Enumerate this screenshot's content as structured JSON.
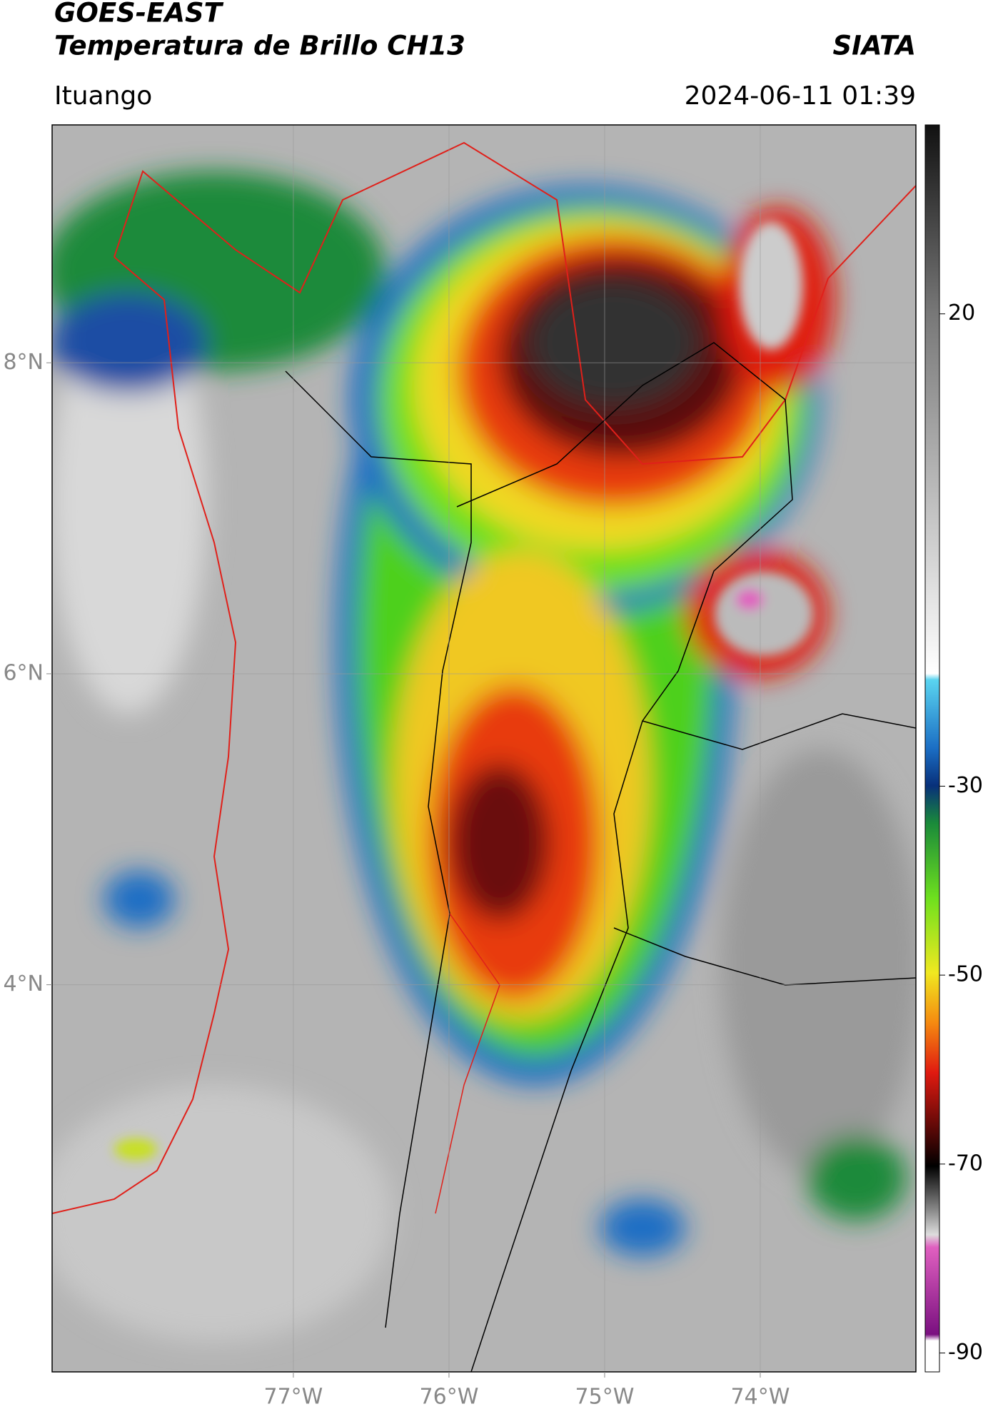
{
  "chart_data": {
    "type": "satellite-map",
    "title": "GOES-EAST",
    "subtitle": "Temperatura de Brillo CH13",
    "source": "SIATA",
    "region": "Ituango",
    "timestamp": "2024-06-11 01:39",
    "xlim": [
      -78.55,
      -73.0
    ],
    "ylim": [
      1.51,
      9.53
    ],
    "xticks": [
      {
        "value": -77,
        "label": "77°W"
      },
      {
        "value": -76,
        "label": "76°W"
      },
      {
        "value": -75,
        "label": "75°W"
      },
      {
        "value": -74,
        "label": "74°W"
      }
    ],
    "yticks": [
      {
        "value": 4,
        "label": "4°N"
      },
      {
        "value": 6,
        "label": "6°N"
      },
      {
        "value": 8,
        "label": "8°N"
      }
    ],
    "grid": true,
    "clim": [
      -92,
      40
    ],
    "cticks": [
      -90,
      -70,
      -50,
      -30,
      20
    ]
  }
}
